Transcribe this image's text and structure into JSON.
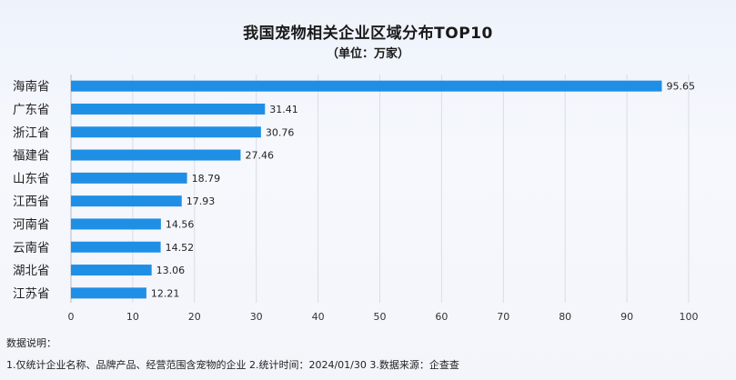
{
  "chart_data": {
    "type": "bar",
    "orientation": "horizontal",
    "title": "我国宠物相关企业区域分布TOP10",
    "subtitle": "（单位：万家）",
    "categories": [
      "海南省",
      "广东省",
      "浙江省",
      "福建省",
      "山东省",
      "江西省",
      "河南省",
      "云南省",
      "湖北省",
      "江苏省"
    ],
    "values": [
      95.65,
      31.41,
      30.76,
      27.46,
      18.79,
      17.93,
      14.56,
      14.52,
      13.06,
      12.21
    ],
    "value_labels": [
      "95.65",
      "31.41",
      "30.76",
      "27.46",
      "18.79",
      "17.93",
      "14.56",
      "14.52",
      "13.06",
      "12.21"
    ],
    "xlim": [
      0,
      100
    ],
    "x_ticks": [
      "0",
      "10",
      "20",
      "30",
      "40",
      "50",
      "60",
      "70",
      "80",
      "90",
      "100"
    ],
    "grid": true,
    "bar_color": "#1f8fe6",
    "notes_heading": "数据说明：",
    "notes_text": "1.仅统计企业名称、品牌产品、经营范围含宠物的企业   2.统计时间：2024/01/30   3.数据来源：企查查"
  }
}
